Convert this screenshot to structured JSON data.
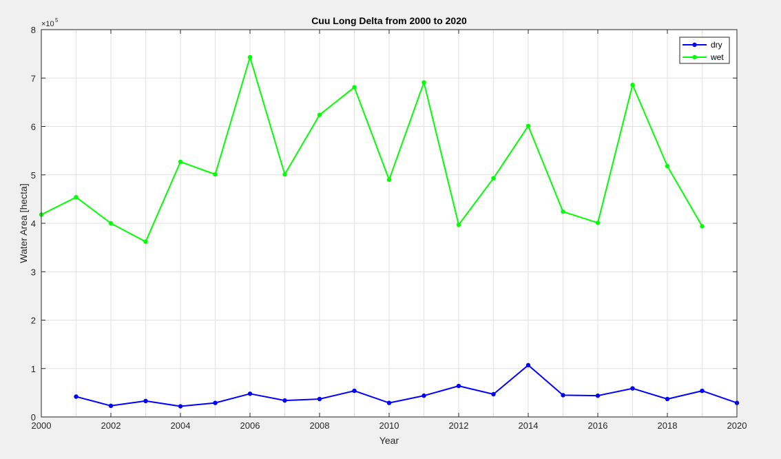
{
  "chart_data": {
    "type": "line",
    "title": "Cuu Long Delta from 2000 to 2020",
    "xlabel": "Year",
    "ylabel": "Water Area [hecta]",
    "y_exponent_label": "×10",
    "y_exponent_power": "5",
    "xlim": [
      2000,
      2020
    ],
    "ylim": [
      0,
      8
    ],
    "y_scale_factor": 100000,
    "xticks": [
      2000,
      2002,
      2004,
      2006,
      2008,
      2010,
      2012,
      2014,
      2016,
      2018,
      2020
    ],
    "yticks": [
      0,
      1,
      2,
      3,
      4,
      5,
      6,
      7,
      8
    ],
    "xticks_minor_grid": [
      2001,
      2003,
      2005,
      2007,
      2009,
      2011,
      2013,
      2015,
      2017,
      2019
    ],
    "grid": true,
    "legend_position": "top-right",
    "series": [
      {
        "name": "dry",
        "color": "#0000ff",
        "x": [
          2001,
          2002,
          2003,
          2004,
          2005,
          2006,
          2007,
          2008,
          2009,
          2010,
          2011,
          2012,
          2013,
          2014,
          2015,
          2016,
          2017,
          2018,
          2019,
          2020
        ],
        "values": [
          42000,
          23000,
          33000,
          22000,
          29000,
          48000,
          34000,
          37000,
          54000,
          29000,
          44000,
          64000,
          47000,
          107000,
          45000,
          44000,
          59000,
          37000,
          54000,
          29000
        ]
      },
      {
        "name": "wet",
        "color": "#00ff00",
        "x": [
          2000,
          2001,
          2002,
          2003,
          2004,
          2005,
          2006,
          2007,
          2008,
          2009,
          2010,
          2011,
          2012,
          2013,
          2014,
          2015,
          2016,
          2017,
          2018,
          2019
        ],
        "values": [
          418000,
          454000,
          400000,
          362000,
          527000,
          501000,
          743000,
          501000,
          624000,
          681000,
          490000,
          691000,
          397000,
          493000,
          601000,
          424000,
          401000,
          686000,
          518000,
          394000
        ]
      }
    ]
  }
}
